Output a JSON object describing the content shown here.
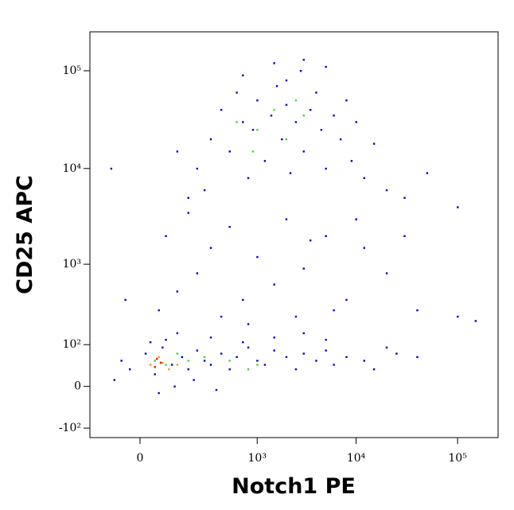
{
  "chart_data": {
    "type": "scatter",
    "x_label": "Notch1 PE",
    "y_label": "CD25 APC",
    "xscale": "logicle",
    "yscale": "logicle",
    "xlim": [
      -160,
      250000
    ],
    "ylim": [
      -140,
      250000
    ],
    "xticks": [
      0,
      {
        "value": 1000,
        "label": "10³"
      },
      {
        "value": 10000,
        "label": "10⁴"
      },
      {
        "value": 100000,
        "label": "10⁵"
      }
    ],
    "yticks": [
      {
        "value": -100,
        "label": "-10²"
      },
      0,
      {
        "value": 100,
        "label": "10²"
      },
      {
        "value": 1000,
        "label": "10³"
      },
      {
        "value": 10000,
        "label": "10⁴"
      },
      {
        "value": 100000,
        "label": "10⁵"
      }
    ],
    "series": [
      {
        "color": "#0000cc",
        "x": [
          -40,
          -20,
          10,
          30,
          50,
          80,
          120,
          150,
          200,
          250,
          300,
          400,
          500,
          600,
          800,
          1000,
          1200,
          1500,
          2000,
          2500,
          3000,
          4000,
          5000,
          6000,
          8000,
          12000,
          15000,
          20000,
          25000,
          40000,
          60,
          100,
          20,
          300,
          700,
          1500,
          3000,
          5000,
          -60,
          40,
          90,
          180,
          350,
          40,
          100,
          200,
          300,
          500,
          700,
          1000,
          1500,
          2000,
          3000,
          5000,
          8000,
          12000,
          20000,
          40000,
          60,
          150,
          250,
          400,
          800,
          2500,
          6000,
          10000,
          30000,
          100000,
          150000,
          -30,
          10000,
          3500,
          200,
          300,
          400,
          500,
          600,
          700,
          800,
          900,
          1000,
          1200,
          1400,
          1600,
          1800,
          2000,
          2200,
          2500,
          2800,
          3000,
          3500,
          4000,
          4500,
          5000,
          6000,
          7000,
          8000,
          9000,
          10000,
          12000,
          15000,
          20000,
          30000,
          50000,
          100000,
          150,
          100,
          1500,
          3000,
          5000,
          700,
          2000,
          -70
        ],
        "y": [
          50,
          30,
          70,
          20,
          90,
          40,
          60,
          30,
          80,
          50,
          40,
          70,
          30,
          60,
          90,
          50,
          40,
          80,
          60,
          30,
          70,
          50,
          80,
          40,
          60,
          50,
          30,
          90,
          70,
          60,
          120,
          150,
          110,
          130,
          110,
          130,
          150,
          120,
          10,
          -10,
          0,
          10,
          -5,
          300,
          500,
          800,
          1500,
          2500,
          400,
          1200,
          600,
          3000,
          900,
          2000,
          400,
          1500,
          800,
          300,
          2000,
          3500,
          6000,
          250,
          200,
          250,
          300,
          3000,
          2000,
          250,
          220,
          400,
          3000,
          1800,
          10000,
          20000,
          40000,
          15000,
          60000,
          30000,
          8000,
          25000,
          50000,
          12000,
          35000,
          70000,
          20000,
          45000,
          9000,
          30000,
          100000,
          15000,
          40000,
          60000,
          25000,
          10000,
          35000,
          20000,
          50000,
          12000,
          30000,
          8000,
          18000,
          6000,
          5000,
          9000,
          4000,
          5000,
          15000,
          120000,
          130000,
          110000,
          90000,
          80000,
          10000
        ]
      },
      {
        "color": "#33dd33",
        "x": [
          30,
          60,
          100,
          150,
          250,
          500,
          800,
          1000,
          600,
          1000,
          1500,
          2000,
          3000,
          900,
          2500
        ],
        "y": [
          50,
          40,
          70,
          50,
          60,
          50,
          30,
          40,
          30000,
          25000,
          40000,
          20000,
          35000,
          15000,
          50000
        ]
      },
      {
        "color": "#ff9900",
        "x": [
          20,
          40,
          70,
          50,
          100
        ],
        "y": [
          40,
          60,
          30,
          45,
          40
        ]
      },
      {
        "color": "#ee1111",
        "x": [
          30,
          45,
          35
        ],
        "y": [
          35,
          45,
          55
        ]
      }
    ]
  }
}
